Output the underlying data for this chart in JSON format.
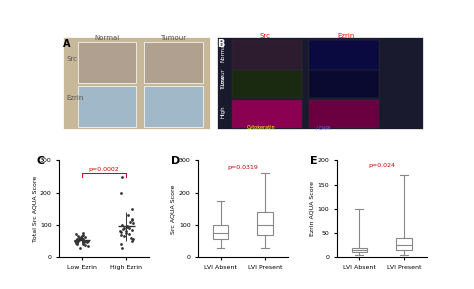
{
  "panel_C": {
    "title": "C",
    "ylabel": "Total Src AQUA Score",
    "xlabel_low": "Low Ezrin",
    "xlabel_high": "High Ezrin",
    "pvalue": "p=0.0002",
    "ylim": [
      0,
      300
    ],
    "yticks": [
      0,
      100,
      200,
      300
    ],
    "low_ezrin_mean": 55,
    "high_ezrin_mean": 90,
    "low_ezrin_points": [
      30,
      35,
      38,
      40,
      42,
      43,
      45,
      46,
      47,
      48,
      49,
      50,
      50,
      51,
      52,
      53,
      54,
      55,
      55,
      56,
      57,
      58,
      59,
      60,
      62,
      63,
      65,
      67,
      70,
      72,
      75
    ],
    "high_ezrin_points": [
      30,
      40,
      50,
      55,
      60,
      65,
      70,
      72,
      75,
      78,
      80,
      82,
      85,
      88,
      90,
      92,
      95,
      98,
      100,
      105,
      110,
      115,
      120,
      130,
      150,
      200,
      250
    ]
  },
  "panel_D": {
    "title": "D",
    "ylabel": "Src AQUA Score",
    "xlabel_absent": "LVI Absent",
    "xlabel_present": "LVI Present",
    "pvalue": "p=0.0319",
    "ylim": [
      0,
      300
    ],
    "yticks": [
      0,
      100,
      200,
      300
    ],
    "absent_q1": 55,
    "absent_q2": 75,
    "absent_q3": 100,
    "absent_whislo": 30,
    "absent_whishi": 175,
    "present_q1": 70,
    "present_q2": 100,
    "present_q3": 140,
    "present_whislo": 30,
    "present_whishi": 260
  },
  "panel_E": {
    "title": "E",
    "ylabel": "Ezrin AQUA Score",
    "xlabel_absent": "LVI Absent",
    "xlabel_present": "LVI Present",
    "pvalue": "p=0.024",
    "ylim": [
      0,
      200
    ],
    "yticks": [
      0,
      50,
      100,
      150,
      200
    ],
    "absent_q1": 10,
    "absent_q2": 15,
    "absent_q3": 20,
    "absent_whislo": 5,
    "absent_whishi": 100,
    "present_q1": 15,
    "present_q2": 25,
    "present_q3": 40,
    "present_whislo": 5,
    "present_whishi": 170
  },
  "bg_color": "#f5f5f0",
  "pvalue_color": "#cc0000",
  "dot_color": "#333333",
  "box_color": "#888888",
  "line_color": "#333333"
}
